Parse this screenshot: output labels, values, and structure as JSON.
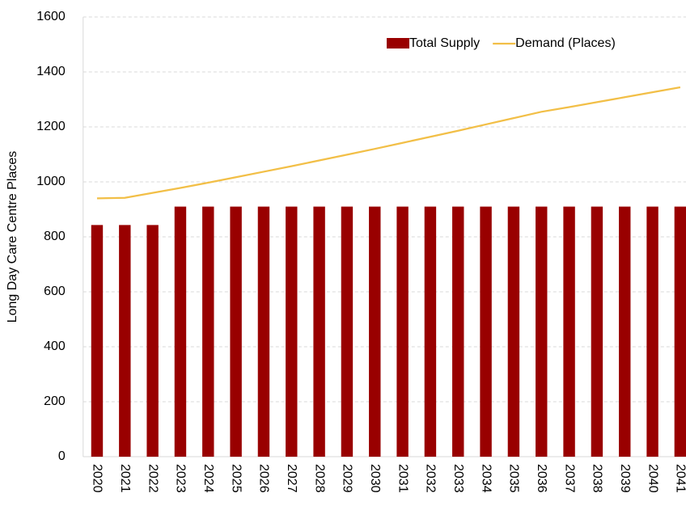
{
  "chart_data": {
    "type": "combo",
    "y_label": "Long Day Care Centre Places",
    "categories": [
      "2020",
      "2021",
      "2022",
      "2023",
      "2024",
      "2025",
      "2026",
      "2027",
      "2028",
      "2029",
      "2030",
      "2031",
      "2032",
      "2033",
      "2034",
      "2035",
      "2036",
      "2037",
      "2038",
      "2039",
      "2040",
      "2041"
    ],
    "series": [
      {
        "name": "Total Supply",
        "type": "bar",
        "color": "#990000",
        "values": [
          843,
          843,
          843,
          910,
          910,
          910,
          910,
          910,
          910,
          910,
          910,
          910,
          910,
          910,
          910,
          910,
          910,
          910,
          910,
          910,
          910,
          910
        ]
      },
      {
        "name": "Demand (Places)",
        "type": "line",
        "color": "#f2bf47",
        "values": [
          940,
          942,
          960,
          978,
          997,
          1017,
          1037,
          1057,
          1078,
          1099,
          1120,
          1142,
          1164,
          1186,
          1209,
          1232,
          1255,
          1272,
          1290,
          1308,
          1326,
          1344
        ]
      }
    ],
    "ylim": [
      0,
      1600
    ],
    "yticks": [
      0,
      200,
      400,
      600,
      800,
      1000,
      1200,
      1400,
      1600
    ],
    "grid": true,
    "legend": "top-right"
  }
}
